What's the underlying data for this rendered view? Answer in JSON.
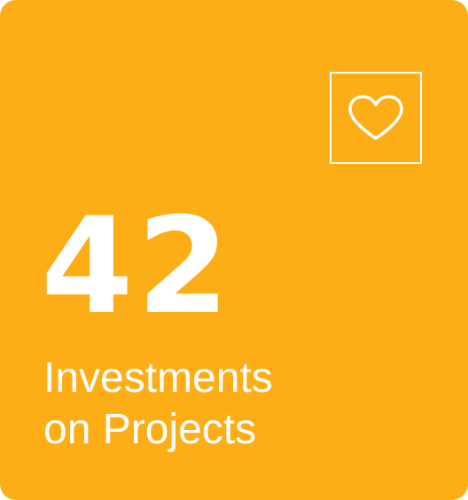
{
  "card": {
    "background_color": "#FDAE16",
    "icon": "heart-icon",
    "number": "42",
    "label_line1": "Investments",
    "label_line2": "on Projects"
  }
}
